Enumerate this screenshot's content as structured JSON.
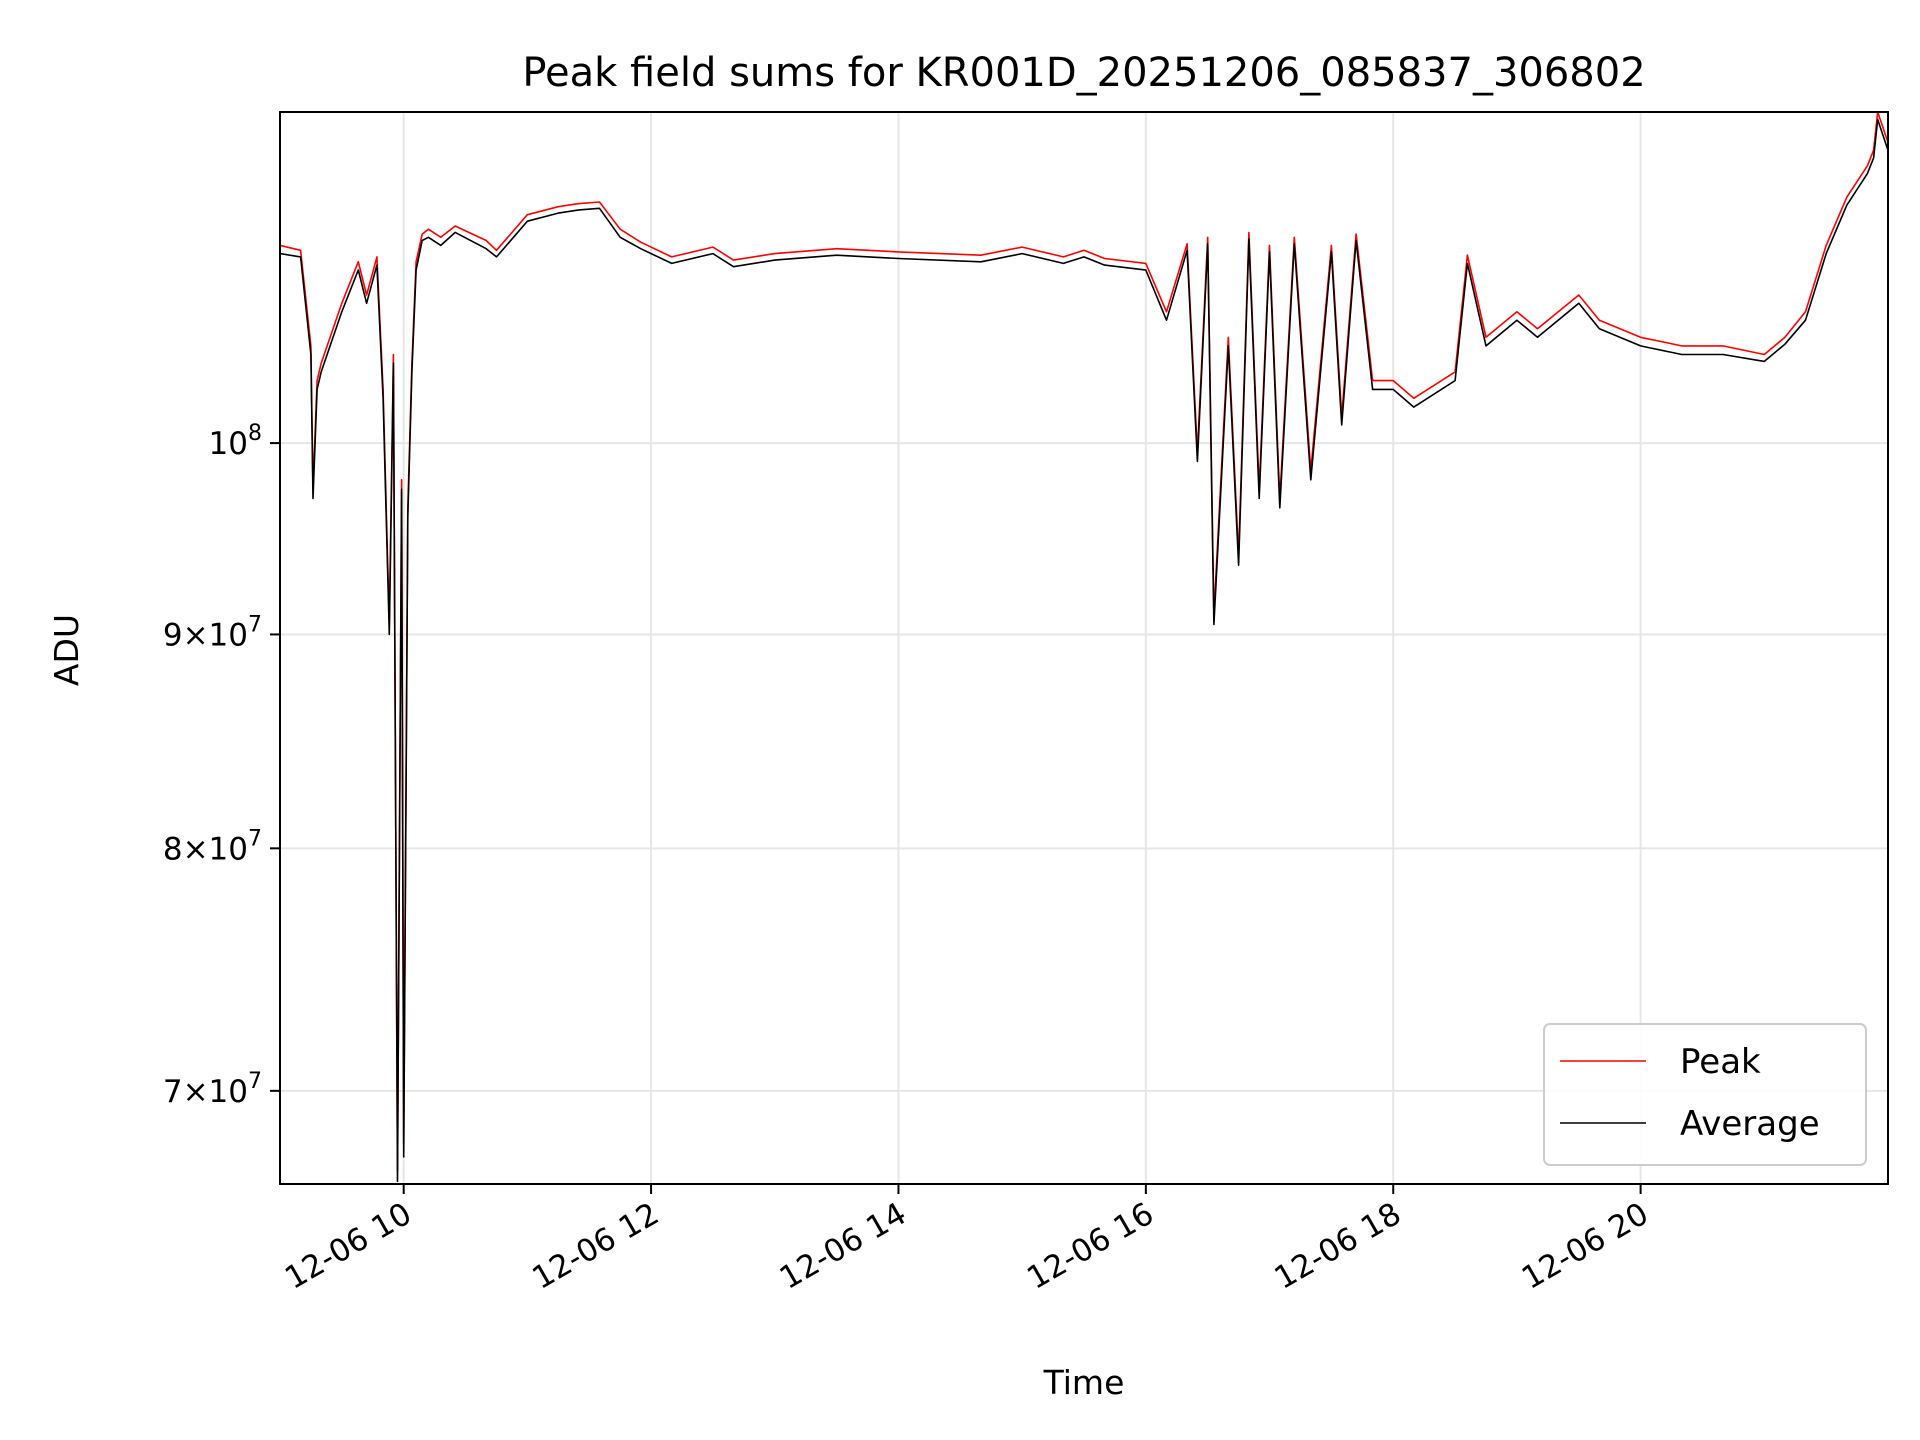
{
  "chart_data": {
    "type": "line",
    "title": "Peak field sums for KR001D_20251206_085837_306802",
    "xlabel": "Time",
    "ylabel": "ADU",
    "y_scale": "log",
    "xlim": [
      "2025-12-06 09:00",
      "2025-12-06 22:00"
    ],
    "ylim": [
      66500000,
      120000000
    ],
    "grid": true,
    "legend_position": "lower right",
    "x_ticks": [
      {
        "value": "2025-12-06 10:00",
        "label": "12-06 10"
      },
      {
        "value": "2025-12-06 12:00",
        "label": "12-06 12"
      },
      {
        "value": "2025-12-06 14:00",
        "label": "12-06 14"
      },
      {
        "value": "2025-12-06 16:00",
        "label": "12-06 16"
      },
      {
        "value": "2025-12-06 18:00",
        "label": "12-06 18"
      },
      {
        "value": "2025-12-06 20:00",
        "label": "12-06 20"
      }
    ],
    "y_ticks": [
      {
        "value": 70000000,
        "mantissa": "7",
        "exp": "7"
      },
      {
        "value": 80000000,
        "mantissa": "8",
        "exp": "7"
      },
      {
        "value": 90000000,
        "mantissa": "9",
        "exp": "7"
      },
      {
        "value": 100000000,
        "mantissa": "",
        "exp": "8"
      }
    ],
    "series": [
      {
        "name": "Peak",
        "color": "#ff0000",
        "x": [
          "2025-12-06 09:00",
          "2025-12-06 09:10",
          "2025-12-06 09:15",
          "2025-12-06 09:16",
          "2025-12-06 09:18",
          "2025-12-06 09:20",
          "2025-12-06 09:30",
          "2025-12-06 09:38",
          "2025-12-06 09:42",
          "2025-12-06 09:47",
          "2025-12-06 09:50",
          "2025-12-06 09:53",
          "2025-12-06 09:55",
          "2025-12-06 09:57",
          "2025-12-06 09:59",
          "2025-12-06 10:00",
          "2025-12-06 10:02",
          "2025-12-06 10:04",
          "2025-12-06 10:06",
          "2025-12-06 10:09",
          "2025-12-06 10:12",
          "2025-12-06 10:18",
          "2025-12-06 10:25",
          "2025-12-06 10:40",
          "2025-12-06 10:45",
          "2025-12-06 11:00",
          "2025-12-06 11:15",
          "2025-12-06 11:25",
          "2025-12-06 11:35",
          "2025-12-06 11:45",
          "2025-12-06 11:55",
          "2025-12-06 12:10",
          "2025-12-06 12:30",
          "2025-12-06 12:40",
          "2025-12-06 13:00",
          "2025-12-06 13:30",
          "2025-12-06 14:00",
          "2025-12-06 14:40",
          "2025-12-06 15:00",
          "2025-12-06 15:20",
          "2025-12-06 15:30",
          "2025-12-06 15:40",
          "2025-12-06 16:00",
          "2025-12-06 16:10",
          "2025-12-06 16:20",
          "2025-12-06 16:25",
          "2025-12-06 16:30",
          "2025-12-06 16:33",
          "2025-12-06 16:40",
          "2025-12-06 16:45",
          "2025-12-06 16:50",
          "2025-12-06 16:55",
          "2025-12-06 17:00",
          "2025-12-06 17:05",
          "2025-12-06 17:12",
          "2025-12-06 17:20",
          "2025-12-06 17:30",
          "2025-12-06 17:35",
          "2025-12-06 17:42",
          "2025-12-06 17:50",
          "2025-12-06 18:00",
          "2025-12-06 18:10",
          "2025-12-06 18:30",
          "2025-12-06 18:36",
          "2025-12-06 18:45",
          "2025-12-06 19:00",
          "2025-12-06 19:10",
          "2025-12-06 19:30",
          "2025-12-06 19:40",
          "2025-12-06 20:00",
          "2025-12-06 20:20",
          "2025-12-06 20:40",
          "2025-12-06 21:00",
          "2025-12-06 21:10",
          "2025-12-06 21:20",
          "2025-12-06 21:30",
          "2025-12-06 21:40",
          "2025-12-06 21:50",
          "2025-12-06 21:53",
          "2025-12-06 21:55",
          "2025-12-06 22:00"
        ],
        "values": [
          111500000,
          111200000,
          105500000,
          97500000,
          103500000,
          104500000,
          108000000,
          110500000,
          108500000,
          110800000,
          103000000,
          90500000,
          105000000,
          67000000,
          98000000,
          68000000,
          96500000,
          104500000,
          110500000,
          112200000,
          112500000,
          112000000,
          112700000,
          111800000,
          111200000,
          113400000,
          113900000,
          114100000,
          114200000,
          112500000,
          111700000,
          110800000,
          111400000,
          110600000,
          111000000,
          111300000,
          111100000,
          110900000,
          111400000,
          110800000,
          111200000,
          110700000,
          110400000,
          107500000,
          111600000,
          99500000,
          112000000,
          91000000,
          106000000,
          94000000,
          112300000,
          97500000,
          111500000,
          97000000,
          112000000,
          98500000,
          111500000,
          101500000,
          112200000,
          103500000,
          103500000,
          102500000,
          104000000,
          110900000,
          106000000,
          107500000,
          106500000,
          108500000,
          107000000,
          106000000,
          105500000,
          105500000,
          105000000,
          106000000,
          107500000,
          111500000,
          114500000,
          116500000,
          117500000,
          120000000,
          118000000
        ]
      },
      {
        "name": "Average",
        "color": "#000000",
        "x": [
          "2025-12-06 09:00",
          "2025-12-06 09:10",
          "2025-12-06 09:15",
          "2025-12-06 09:16",
          "2025-12-06 09:18",
          "2025-12-06 09:20",
          "2025-12-06 09:30",
          "2025-12-06 09:38",
          "2025-12-06 09:42",
          "2025-12-06 09:47",
          "2025-12-06 09:50",
          "2025-12-06 09:53",
          "2025-12-06 09:55",
          "2025-12-06 09:57",
          "2025-12-06 09:59",
          "2025-12-06 10:00",
          "2025-12-06 10:02",
          "2025-12-06 10:04",
          "2025-12-06 10:06",
          "2025-12-06 10:09",
          "2025-12-06 10:12",
          "2025-12-06 10:18",
          "2025-12-06 10:25",
          "2025-12-06 10:40",
          "2025-12-06 10:45",
          "2025-12-06 11:00",
          "2025-12-06 11:15",
          "2025-12-06 11:25",
          "2025-12-06 11:35",
          "2025-12-06 11:45",
          "2025-12-06 11:55",
          "2025-12-06 12:10",
          "2025-12-06 12:30",
          "2025-12-06 12:40",
          "2025-12-06 13:00",
          "2025-12-06 13:30",
          "2025-12-06 14:00",
          "2025-12-06 14:40",
          "2025-12-06 15:00",
          "2025-12-06 15:20",
          "2025-12-06 15:30",
          "2025-12-06 15:40",
          "2025-12-06 16:00",
          "2025-12-06 16:10",
          "2025-12-06 16:20",
          "2025-12-06 16:25",
          "2025-12-06 16:30",
          "2025-12-06 16:33",
          "2025-12-06 16:40",
          "2025-12-06 16:45",
          "2025-12-06 16:50",
          "2025-12-06 16:55",
          "2025-12-06 17:00",
          "2025-12-06 17:05",
          "2025-12-06 17:12",
          "2025-12-06 17:20",
          "2025-12-06 17:30",
          "2025-12-06 17:35",
          "2025-12-06 17:42",
          "2025-12-06 17:50",
          "2025-12-06 18:00",
          "2025-12-06 18:10",
          "2025-12-06 18:30",
          "2025-12-06 18:36",
          "2025-12-06 18:45",
          "2025-12-06 19:00",
          "2025-12-06 19:10",
          "2025-12-06 19:30",
          "2025-12-06 19:40",
          "2025-12-06 20:00",
          "2025-12-06 20:20",
          "2025-12-06 20:40",
          "2025-12-06 21:00",
          "2025-12-06 21:10",
          "2025-12-06 21:20",
          "2025-12-06 21:30",
          "2025-12-06 21:40",
          "2025-12-06 21:50",
          "2025-12-06 21:53",
          "2025-12-06 21:55",
          "2025-12-06 22:00"
        ],
        "values": [
          111000000,
          110800000,
          105000000,
          97000000,
          103000000,
          104000000,
          107500000,
          110000000,
          108000000,
          110300000,
          102500000,
          90000000,
          104500000,
          66600000,
          97500000,
          67500000,
          96000000,
          104000000,
          110000000,
          111800000,
          112000000,
          111500000,
          112300000,
          111300000,
          110800000,
          113000000,
          113500000,
          113700000,
          113800000,
          112000000,
          111300000,
          110400000,
          111000000,
          110200000,
          110600000,
          110900000,
          110700000,
          110500000,
          111000000,
          110400000,
          110800000,
          110300000,
          110000000,
          107000000,
          111200000,
          99000000,
          111600000,
          90500000,
          105500000,
          93500000,
          111900000,
          97000000,
          111100000,
          96500000,
          111600000,
          98000000,
          111100000,
          101000000,
          111800000,
          103000000,
          103000000,
          102000000,
          103500000,
          110400000,
          105500000,
          107000000,
          106000000,
          108000000,
          106500000,
          105500000,
          105000000,
          105000000,
          104600000,
          105600000,
          107000000,
          111000000,
          114000000,
          116000000,
          117000000,
          119500000,
          117500000
        ]
      }
    ]
  }
}
